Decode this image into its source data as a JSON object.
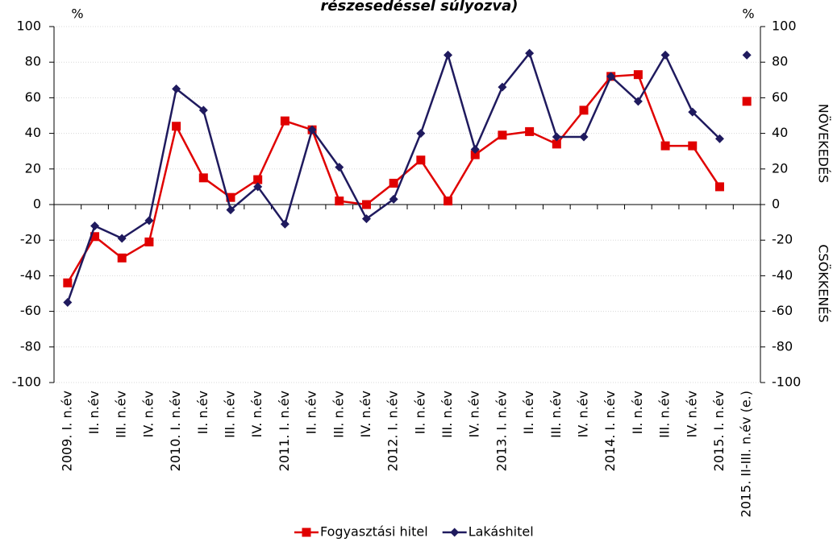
{
  "chart_data": {
    "type": "line",
    "title": "részesedéssel súlyozva)",
    "y_unit": "%",
    "y2_unit": "%",
    "y2_label_top": "NÖVEKEDÉS",
    "y2_label_bottom": "CSÖKKENÉS",
    "categories": [
      "2009. I. n.év",
      "II. n.év",
      "III. n.év",
      "IV. n.év",
      "2010. I. n.év",
      "II. n.év",
      "III. n.év",
      "IV. n.év",
      "2011. I. n.év",
      "II. n.év",
      "III. n.év",
      "IV. n.év",
      "2012. I. n.év",
      "II. n.év",
      "III. n.év",
      "IV. n.év",
      "2013. I. n.év",
      "II. n.év",
      "III. n.év",
      "IV. n.év",
      "2014. I. n.év",
      "II. n.év",
      "III. n.év",
      "IV. n.év",
      "2015. I. n.év",
      "2015. II-III. n.év (e.)"
    ],
    "series": [
      {
        "name": "Fogyasztási hitel",
        "color": "#e00000",
        "marker": "square",
        "values": [
          -44,
          -18,
          -30,
          -21,
          44,
          15,
          4,
          14,
          47,
          42,
          2,
          0,
          12,
          25,
          2,
          28,
          39,
          41,
          34,
          53,
          72,
          73,
          33,
          33,
          10,
          58
        ]
      },
      {
        "name": "Lakáshitel",
        "color": "#1f1a5e",
        "marker": "diamond",
        "values": [
          -55,
          -12,
          -19,
          -9,
          65,
          53,
          -3,
          10,
          -11,
          42,
          21,
          -8,
          3,
          40,
          84,
          31,
          66,
          85,
          38,
          38,
          72,
          58,
          84,
          52,
          37,
          84
        ]
      }
    ],
    "gap_before_last": true,
    "ylim": [
      -100,
      100
    ],
    "yticks": [
      -100,
      -80,
      -60,
      -40,
      -20,
      0,
      20,
      40,
      60,
      80,
      100
    ],
    "y2lim": [
      -100,
      100
    ],
    "y2ticks": [
      -100,
      -80,
      -60,
      -40,
      -20,
      0,
      20,
      40,
      60,
      80,
      100
    ],
    "grid": true,
    "legend": "bottom"
  }
}
